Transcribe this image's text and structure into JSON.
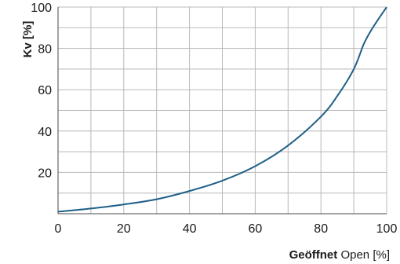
{
  "chart_data": {
    "type": "line",
    "ylabel": "Kv [%]",
    "xlabel_bold": "Geöffnet",
    "xlabel_rest": "Open [%]",
    "xlim": [
      0,
      100
    ],
    "ylim": [
      0,
      100
    ],
    "x_ticks": [
      "0",
      "20",
      "40",
      "60",
      "80",
      "100"
    ],
    "y_ticks": [
      "20",
      "40",
      "60",
      "80",
      "100"
    ],
    "grid": true,
    "line_color": "#1f5f87",
    "series": [
      {
        "x": [
          0,
          10,
          20,
          30,
          40,
          50,
          60,
          70,
          80,
          85,
          90,
          93,
          95,
          97,
          100
        ],
        "y": [
          1,
          2.5,
          4.5,
          7,
          11,
          16,
          23,
          33,
          47,
          57,
          70,
          82,
          88,
          93,
          100
        ]
      }
    ]
  }
}
